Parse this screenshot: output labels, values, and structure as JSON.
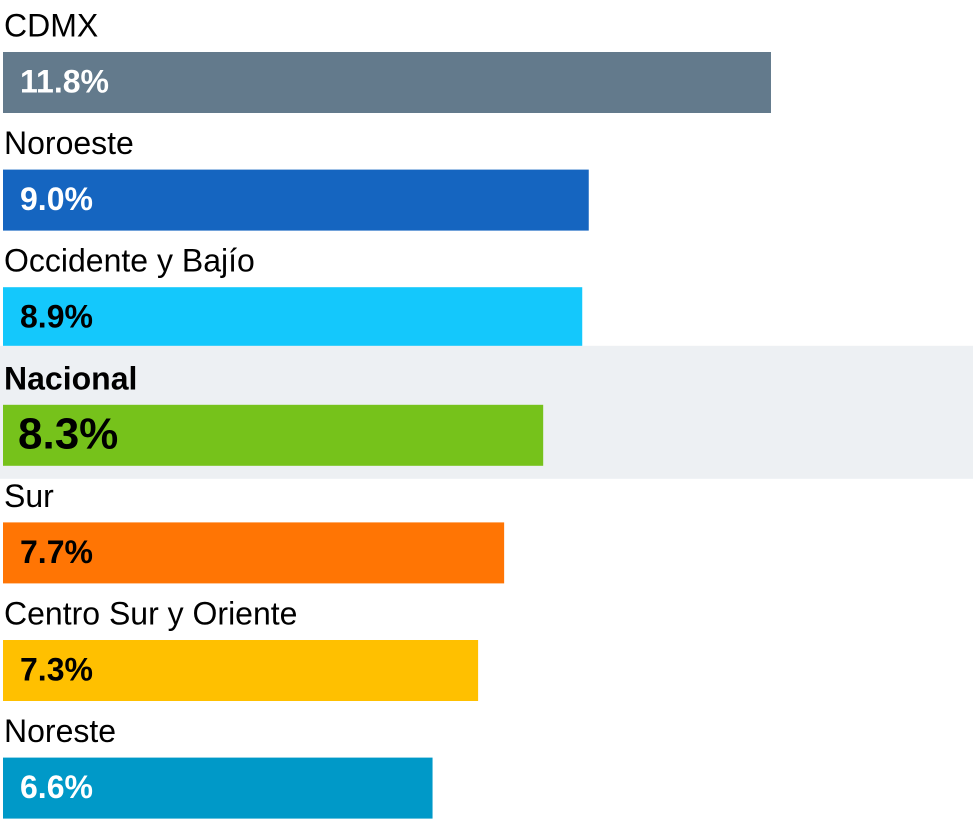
{
  "chart_data": {
    "type": "bar",
    "orientation": "horizontal",
    "categories": [
      "CDMX",
      "Noroeste",
      "Occidente y Bajío",
      "Nacional",
      "Sur",
      "Centro Sur y Oriente",
      "Noreste"
    ],
    "values": [
      11.8,
      9.0,
      8.9,
      8.3,
      7.7,
      7.3,
      6.6
    ],
    "value_labels": [
      "11.8%",
      "9.0%",
      "8.9%",
      "8.3%",
      "7.7%",
      "7.3%",
      "6.6%"
    ],
    "colors": [
      "#637a8c",
      "#1565c0",
      "#14c8fc",
      "#76c21b",
      "#ff7504",
      "#ffc000",
      "#0099c8"
    ],
    "label_colors": [
      "#ffffff",
      "#ffffff",
      "#000000",
      "#000000",
      "#000000",
      "#000000",
      "#ffffff"
    ],
    "highlight": "Nacional",
    "xlim": [
      0,
      12
    ]
  }
}
